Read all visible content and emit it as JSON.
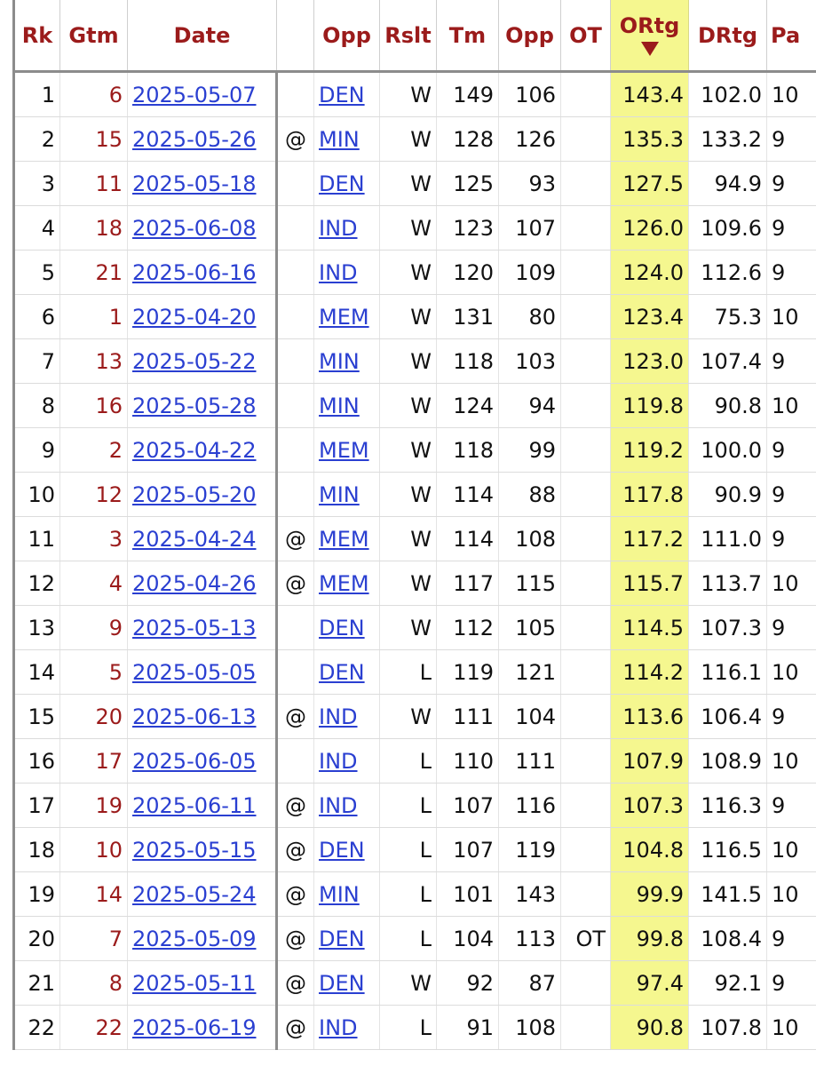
{
  "headers": [
    "Rk",
    "Gtm",
    "Date",
    "",
    "Opp",
    "Rslt",
    "Tm",
    "Opp",
    "OT",
    "ORtg",
    "DRtg",
    "Pa"
  ],
  "rows": [
    {
      "rk": "1",
      "gtm": "6",
      "date": "2025-05-07",
      "at": "",
      "opp": "DEN",
      "rslt": "W",
      "tm": "149",
      "opp_pts": "106",
      "ot": "",
      "ortg": "143.4",
      "drtg": "102.0",
      "pace": "10"
    },
    {
      "rk": "2",
      "gtm": "15",
      "date": "2025-05-26",
      "at": "@",
      "opp": "MIN",
      "rslt": "W",
      "tm": "128",
      "opp_pts": "126",
      "ot": "",
      "ortg": "135.3",
      "drtg": "133.2",
      "pace": "9"
    },
    {
      "rk": "3",
      "gtm": "11",
      "date": "2025-05-18",
      "at": "",
      "opp": "DEN",
      "rslt": "W",
      "tm": "125",
      "opp_pts": "93",
      "ot": "",
      "ortg": "127.5",
      "drtg": "94.9",
      "pace": "9"
    },
    {
      "rk": "4",
      "gtm": "18",
      "date": "2025-06-08",
      "at": "",
      "opp": "IND",
      "rslt": "W",
      "tm": "123",
      "opp_pts": "107",
      "ot": "",
      "ortg": "126.0",
      "drtg": "109.6",
      "pace": "9"
    },
    {
      "rk": "5",
      "gtm": "21",
      "date": "2025-06-16",
      "at": "",
      "opp": "IND",
      "rslt": "W",
      "tm": "120",
      "opp_pts": "109",
      "ot": "",
      "ortg": "124.0",
      "drtg": "112.6",
      "pace": "9"
    },
    {
      "rk": "6",
      "gtm": "1",
      "date": "2025-04-20",
      "at": "",
      "opp": "MEM",
      "rslt": "W",
      "tm": "131",
      "opp_pts": "80",
      "ot": "",
      "ortg": "123.4",
      "drtg": "75.3",
      "pace": "10"
    },
    {
      "rk": "7",
      "gtm": "13",
      "date": "2025-05-22",
      "at": "",
      "opp": "MIN",
      "rslt": "W",
      "tm": "118",
      "opp_pts": "103",
      "ot": "",
      "ortg": "123.0",
      "drtg": "107.4",
      "pace": "9"
    },
    {
      "rk": "8",
      "gtm": "16",
      "date": "2025-05-28",
      "at": "",
      "opp": "MIN",
      "rslt": "W",
      "tm": "124",
      "opp_pts": "94",
      "ot": "",
      "ortg": "119.8",
      "drtg": "90.8",
      "pace": "10"
    },
    {
      "rk": "9",
      "gtm": "2",
      "date": "2025-04-22",
      "at": "",
      "opp": "MEM",
      "rslt": "W",
      "tm": "118",
      "opp_pts": "99",
      "ot": "",
      "ortg": "119.2",
      "drtg": "100.0",
      "pace": "9"
    },
    {
      "rk": "10",
      "gtm": "12",
      "date": "2025-05-20",
      "at": "",
      "opp": "MIN",
      "rslt": "W",
      "tm": "114",
      "opp_pts": "88",
      "ot": "",
      "ortg": "117.8",
      "drtg": "90.9",
      "pace": "9"
    },
    {
      "rk": "11",
      "gtm": "3",
      "date": "2025-04-24",
      "at": "@",
      "opp": "MEM",
      "rslt": "W",
      "tm": "114",
      "opp_pts": "108",
      "ot": "",
      "ortg": "117.2",
      "drtg": "111.0",
      "pace": "9"
    },
    {
      "rk": "12",
      "gtm": "4",
      "date": "2025-04-26",
      "at": "@",
      "opp": "MEM",
      "rslt": "W",
      "tm": "117",
      "opp_pts": "115",
      "ot": "",
      "ortg": "115.7",
      "drtg": "113.7",
      "pace": "10"
    },
    {
      "rk": "13",
      "gtm": "9",
      "date": "2025-05-13",
      "at": "",
      "opp": "DEN",
      "rslt": "W",
      "tm": "112",
      "opp_pts": "105",
      "ot": "",
      "ortg": "114.5",
      "drtg": "107.3",
      "pace": "9"
    },
    {
      "rk": "14",
      "gtm": "5",
      "date": "2025-05-05",
      "at": "",
      "opp": "DEN",
      "rslt": "L",
      "tm": "119",
      "opp_pts": "121",
      "ot": "",
      "ortg": "114.2",
      "drtg": "116.1",
      "pace": "10"
    },
    {
      "rk": "15",
      "gtm": "20",
      "date": "2025-06-13",
      "at": "@",
      "opp": "IND",
      "rslt": "W",
      "tm": "111",
      "opp_pts": "104",
      "ot": "",
      "ortg": "113.6",
      "drtg": "106.4",
      "pace": "9"
    },
    {
      "rk": "16",
      "gtm": "17",
      "date": "2025-06-05",
      "at": "",
      "opp": "IND",
      "rslt": "L",
      "tm": "110",
      "opp_pts": "111",
      "ot": "",
      "ortg": "107.9",
      "drtg": "108.9",
      "pace": "10"
    },
    {
      "rk": "17",
      "gtm": "19",
      "date": "2025-06-11",
      "at": "@",
      "opp": "IND",
      "rslt": "L",
      "tm": "107",
      "opp_pts": "116",
      "ot": "",
      "ortg": "107.3",
      "drtg": "116.3",
      "pace": "9"
    },
    {
      "rk": "18",
      "gtm": "10",
      "date": "2025-05-15",
      "at": "@",
      "opp": "DEN",
      "rslt": "L",
      "tm": "107",
      "opp_pts": "119",
      "ot": "",
      "ortg": "104.8",
      "drtg": "116.5",
      "pace": "10"
    },
    {
      "rk": "19",
      "gtm": "14",
      "date": "2025-05-24",
      "at": "@",
      "opp": "MIN",
      "rslt": "L",
      "tm": "101",
      "opp_pts": "143",
      "ot": "",
      "ortg": "99.9",
      "drtg": "141.5",
      "pace": "10"
    },
    {
      "rk": "20",
      "gtm": "7",
      "date": "2025-05-09",
      "at": "@",
      "opp": "DEN",
      "rslt": "L",
      "tm": "104",
      "opp_pts": "113",
      "ot": "OT",
      "ortg": "99.8",
      "drtg": "108.4",
      "pace": "9"
    },
    {
      "rk": "21",
      "gtm": "8",
      "date": "2025-05-11",
      "at": "@",
      "opp": "DEN",
      "rslt": "W",
      "tm": "92",
      "opp_pts": "87",
      "ot": "",
      "ortg": "97.4",
      "drtg": "92.1",
      "pace": "9"
    },
    {
      "rk": "22",
      "gtm": "22",
      "date": "2025-06-19",
      "at": "@",
      "opp": "IND",
      "rslt": "L",
      "tm": "91",
      "opp_pts": "108",
      "ot": "",
      "ortg": "90.8",
      "drtg": "107.8",
      "pace": "10"
    }
  ]
}
